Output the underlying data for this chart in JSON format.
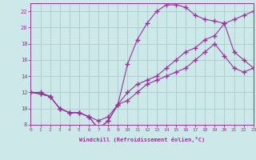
{
  "line1_x": [
    0,
    1,
    2,
    3,
    4,
    5,
    6,
    7,
    8,
    9,
    10,
    11,
    12,
    13,
    14,
    15,
    16,
    17,
    18,
    19,
    20,
    21,
    22,
    23
  ],
  "line1_y": [
    12,
    12,
    11.5,
    10,
    9.5,
    9.5,
    9,
    8.5,
    9,
    10.5,
    11,
    12,
    13,
    13.5,
    14,
    14.5,
    15,
    16,
    17,
    18,
    16.5,
    15,
    14.5,
    15
  ],
  "line2_x": [
    0,
    1,
    2,
    3,
    4,
    5,
    6,
    7,
    8,
    9,
    10,
    11,
    12,
    13,
    14,
    15,
    16,
    17,
    18,
    19,
    20,
    21,
    22,
    23
  ],
  "line2_y": [
    12,
    11.8,
    11.5,
    10,
    9.5,
    9.5,
    9,
    7.5,
    8.5,
    10.5,
    15.5,
    18.5,
    20.5,
    22,
    22.8,
    22.8,
    22.5,
    21.5,
    21,
    20.8,
    20.5,
    17,
    16,
    15
  ],
  "line3_x": [
    0,
    1,
    2,
    3,
    4,
    5,
    6,
    7,
    8,
    9,
    10,
    11,
    12,
    13,
    14,
    15,
    16,
    17,
    18,
    19,
    20,
    21,
    22,
    23
  ],
  "line3_y": [
    12,
    11.8,
    11.5,
    10,
    9.5,
    9.5,
    9,
    7.5,
    8.5,
    10.5,
    12,
    13,
    13.5,
    14,
    15,
    16,
    17,
    17.5,
    18.5,
    19,
    20.5,
    21,
    21.5,
    22
  ],
  "color": "#993399",
  "bg_color": "#cce8e8",
  "grid_color": "#aacccc",
  "xlabel": "Windchill (Refroidissement éolien,°C)",
  "ylim": [
    8,
    23
  ],
  "xlim": [
    0,
    23
  ],
  "yticks": [
    8,
    10,
    12,
    14,
    16,
    18,
    20,
    22
  ],
  "xticks": [
    0,
    1,
    2,
    3,
    4,
    5,
    6,
    7,
    8,
    9,
    10,
    11,
    12,
    13,
    14,
    15,
    16,
    17,
    18,
    19,
    20,
    21,
    22,
    23
  ]
}
